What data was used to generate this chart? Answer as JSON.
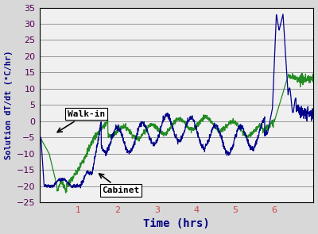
{
  "title": "",
  "xlabel": "Time (hrs)",
  "ylabel": "Solution dT/dt (°C/hr)",
  "xlim": [
    0,
    7
  ],
  "ylim": [
    -25,
    35
  ],
  "yticks": [
    -25,
    -20,
    -15,
    -10,
    -5,
    0,
    5,
    10,
    15,
    20,
    25,
    30,
    35
  ],
  "xticks": [
    1,
    2,
    3,
    4,
    5,
    6
  ],
  "xtick_labels": [
    "1",
    "2",
    "3",
    "4",
    "5",
    "6"
  ],
  "walkin_color": "#228B22",
  "cabinet_color": "#00008B",
  "bg_color": "#f0f0f0",
  "plot_bg": "#f0f0f0",
  "annotation_walkin": "Walk-in",
  "annotation_cabinet": "Cabinet"
}
